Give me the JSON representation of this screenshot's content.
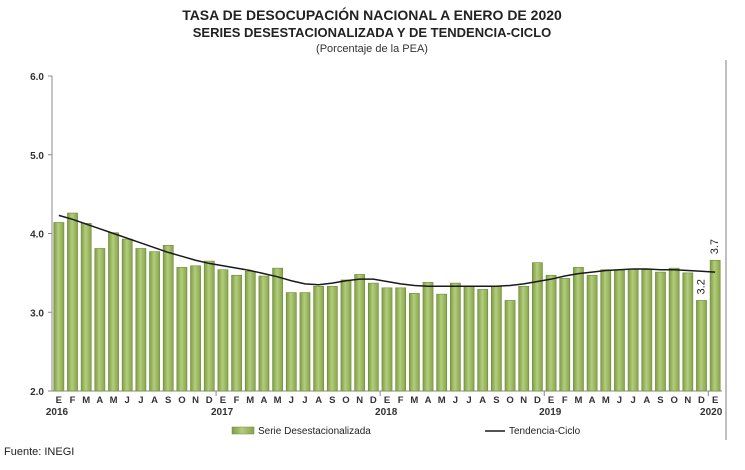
{
  "chart_data": {
    "type": "bar",
    "title": "TASA DE DESOCUPACIÓN NACIONAL A ENERO DE 2020",
    "subtitle": "SERIES DESESTACIONALIZADA Y DE TENDENCIA-CICLO",
    "unit_note": "(Porcentaje de la PEA)",
    "source": "Fuente: INEGI",
    "ylim": [
      2.0,
      6.0
    ],
    "yticks": [
      "2.0",
      "3.0",
      "4.0",
      "5.0",
      "6.0"
    ],
    "months": [
      "E",
      "F",
      "M",
      "A",
      "M",
      "J",
      "J",
      "A",
      "S",
      "O",
      "N",
      "D",
      "E",
      "F",
      "M",
      "A",
      "M",
      "J",
      "J",
      "A",
      "S",
      "O",
      "N",
      "D",
      "E",
      "F",
      "M",
      "A",
      "M",
      "J",
      "J",
      "A",
      "S",
      "O",
      "N",
      "D",
      "E",
      "F",
      "M",
      "A",
      "M",
      "J",
      "J",
      "A",
      "S",
      "O",
      "N",
      "D",
      "E"
    ],
    "years": [
      {
        "label": "2016",
        "index": 0
      },
      {
        "label": "2017",
        "index": 12
      },
      {
        "label": "2018",
        "index": 24
      },
      {
        "label": "2019",
        "index": 36
      },
      {
        "label": "2020",
        "index": 48
      }
    ],
    "series": [
      {
        "name": "Serie Desestacionalizada",
        "kind": "bar",
        "color": "#9bbb59",
        "values": [
          4.14,
          4.26,
          4.13,
          3.81,
          4.01,
          3.93,
          3.81,
          3.77,
          3.85,
          3.57,
          3.59,
          3.65,
          3.54,
          3.47,
          3.52,
          3.46,
          3.56,
          3.25,
          3.25,
          3.33,
          3.33,
          3.41,
          3.48,
          3.37,
          3.31,
          3.31,
          3.24,
          3.38,
          3.23,
          3.37,
          3.33,
          3.29,
          3.33,
          3.15,
          3.33,
          3.63,
          3.47,
          3.43,
          3.57,
          3.47,
          3.54,
          3.54,
          3.55,
          3.54,
          3.51,
          3.56,
          3.5,
          3.15,
          3.66
        ]
      },
      {
        "name": "Tendencia-Ciclo",
        "kind": "line",
        "color": "#1a1a1a",
        "values": [
          4.23,
          4.18,
          4.12,
          4.06,
          4.0,
          3.94,
          3.88,
          3.82,
          3.76,
          3.71,
          3.66,
          3.62,
          3.59,
          3.56,
          3.53,
          3.49,
          3.45,
          3.4,
          3.36,
          3.35,
          3.37,
          3.4,
          3.42,
          3.42,
          3.39,
          3.36,
          3.34,
          3.33,
          3.33,
          3.33,
          3.33,
          3.33,
          3.33,
          3.34,
          3.36,
          3.39,
          3.42,
          3.46,
          3.49,
          3.51,
          3.53,
          3.54,
          3.55,
          3.55,
          3.54,
          3.54,
          3.53,
          3.52,
          3.51
        ]
      }
    ],
    "data_labels": [
      {
        "index": 47,
        "text": "3.2"
      },
      {
        "index": 48,
        "text": "3.7"
      }
    ],
    "legend": {
      "position": "bottom",
      "bar_label": "Serie Desestacionalizada",
      "line_label": "Tendencia-Ciclo"
    },
    "grid": false
  }
}
